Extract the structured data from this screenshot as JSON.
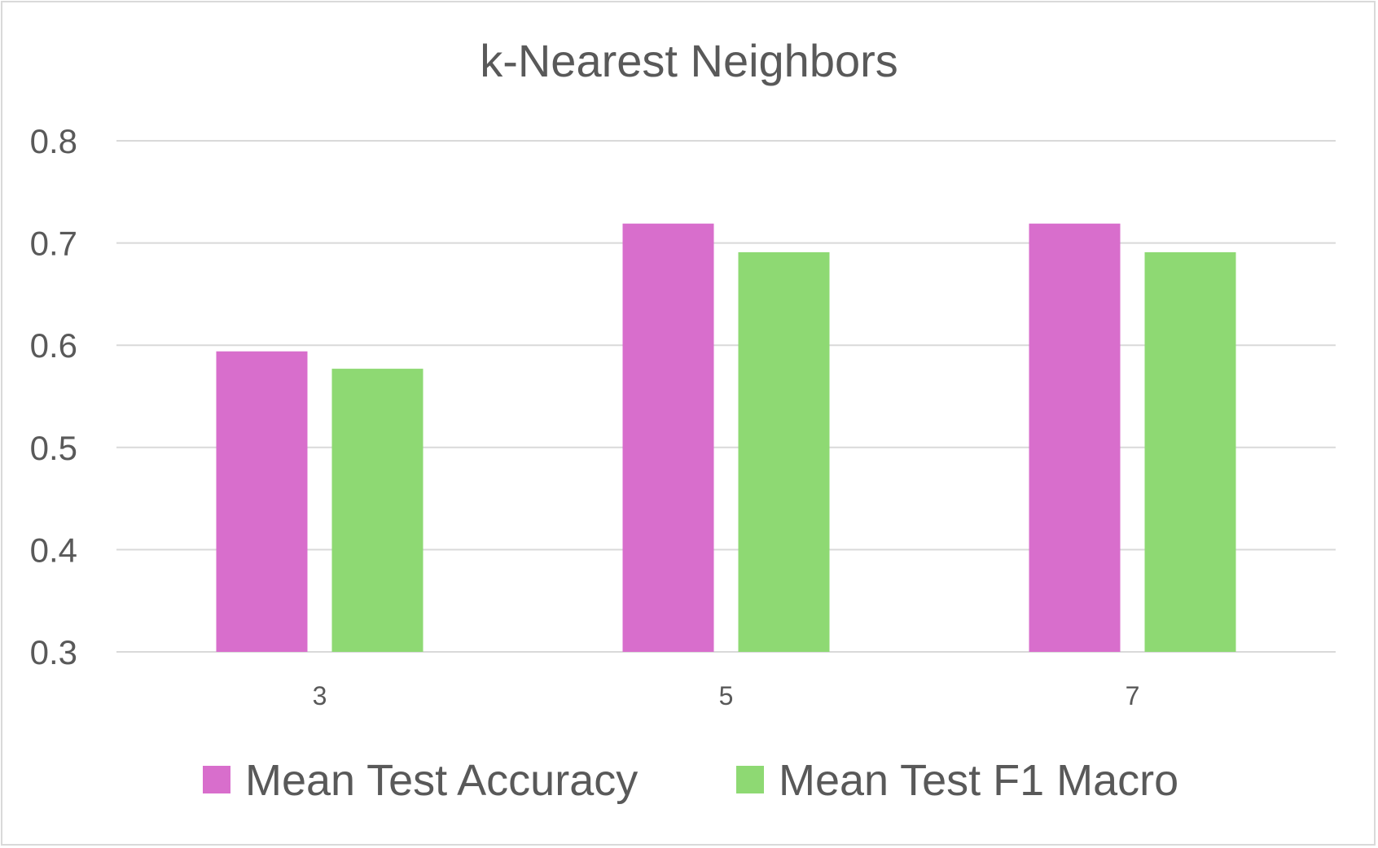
{
  "chart_data": {
    "type": "bar",
    "title": "k-Nearest Neighbors",
    "categories": [
      "3",
      "5",
      "7"
    ],
    "series": [
      {
        "name": "Mean Test Accuracy",
        "values": [
          0.594,
          0.719,
          0.719
        ],
        "color": "#d86ecc"
      },
      {
        "name": "Mean Test F1 Macro",
        "values": [
          0.577,
          0.691,
          0.691
        ],
        "color": "#8ed973"
      }
    ],
    "ylim": [
      0.3,
      0.8
    ],
    "yticks": [
      "0.3",
      "0.4",
      "0.5",
      "0.6",
      "0.7",
      "0.8"
    ],
    "grid": true,
    "legend_position": "bottom"
  }
}
